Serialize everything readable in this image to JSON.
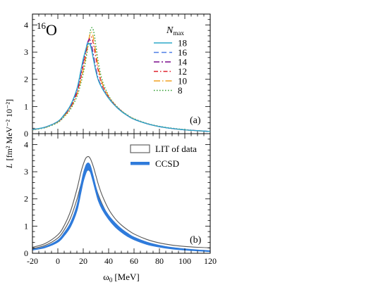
{
  "chart_data": [
    {
      "type": "line",
      "panel_label": "(a)",
      "nucleus": {
        "mass": "16",
        "element": "O"
      },
      "xlim": [
        -20,
        120
      ],
      "ylim": [
        0,
        4.4
      ],
      "yticks": [
        0,
        1,
        2,
        3,
        4
      ],
      "legend": {
        "title_main": "N",
        "title_sub": "max",
        "position": "top-right"
      },
      "series": [
        {
          "name": "18",
          "color": "#2ca9c9",
          "dash": "",
          "width": 1.3,
          "x": [
            -20,
            -10,
            0,
            5,
            10,
            15,
            18,
            20,
            22,
            23,
            24,
            25,
            26,
            27,
            28,
            30,
            32,
            35,
            40,
            45,
            50,
            55,
            60,
            70,
            80,
            90,
            100,
            110,
            120
          ],
          "y": [
            0.15,
            0.24,
            0.45,
            0.7,
            1.05,
            1.65,
            2.3,
            2.75,
            3.1,
            3.26,
            3.32,
            3.3,
            3.18,
            2.98,
            2.74,
            2.28,
            1.95,
            1.66,
            1.3,
            1.03,
            0.82,
            0.66,
            0.53,
            0.37,
            0.26,
            0.19,
            0.14,
            0.11,
            0.08
          ]
        },
        {
          "name": "16",
          "color": "#4f7fe6",
          "dash": "7,4",
          "width": 1.3,
          "x": [
            -20,
            -10,
            0,
            5,
            10,
            15,
            18,
            20,
            22,
            23,
            24,
            25,
            26,
            27,
            28,
            30,
            32,
            35,
            40,
            45,
            50,
            55,
            60,
            70,
            80,
            90,
            100,
            110,
            120
          ],
          "y": [
            0.15,
            0.24,
            0.45,
            0.7,
            1.04,
            1.63,
            2.28,
            2.73,
            3.1,
            3.3,
            3.38,
            3.36,
            3.22,
            3.01,
            2.77,
            2.3,
            1.96,
            1.66,
            1.3,
            1.03,
            0.82,
            0.66,
            0.53,
            0.37,
            0.26,
            0.19,
            0.14,
            0.11,
            0.08
          ]
        },
        {
          "name": "14",
          "color": "#7a0a8c",
          "dash": "8,3,2,3",
          "width": 1.3,
          "x": [
            -20,
            -10,
            0,
            5,
            10,
            15,
            18,
            20,
            22,
            23,
            24,
            25,
            26,
            27,
            28,
            30,
            32,
            35,
            40,
            45,
            50,
            55,
            60,
            70,
            80,
            90,
            100,
            110,
            120
          ],
          "y": [
            0.15,
            0.24,
            0.45,
            0.69,
            1.02,
            1.58,
            2.2,
            2.65,
            3.05,
            3.28,
            3.42,
            3.46,
            3.36,
            3.16,
            2.9,
            2.38,
            2.0,
            1.68,
            1.31,
            1.04,
            0.83,
            0.66,
            0.53,
            0.37,
            0.26,
            0.19,
            0.14,
            0.11,
            0.08
          ]
        },
        {
          "name": "12",
          "color": "#e0202a",
          "dash": "6,3,1.5,3",
          "width": 1.3,
          "x": [
            -20,
            -10,
            0,
            5,
            10,
            15,
            18,
            20,
            22,
            24,
            25,
            26,
            27,
            28,
            29,
            30,
            32,
            35,
            40,
            45,
            50,
            55,
            60,
            70,
            80,
            90,
            100,
            110,
            120
          ],
          "y": [
            0.15,
            0.24,
            0.44,
            0.67,
            0.98,
            1.5,
            2.05,
            2.5,
            2.95,
            3.38,
            3.52,
            3.57,
            3.5,
            3.3,
            3.05,
            2.78,
            2.28,
            1.78,
            1.34,
            1.05,
            0.83,
            0.66,
            0.53,
            0.37,
            0.26,
            0.19,
            0.14,
            0.11,
            0.08
          ]
        },
        {
          "name": "10",
          "color": "#f0a020",
          "dash": "9,3,1.5,3",
          "width": 1.3,
          "x": [
            -20,
            -10,
            0,
            5,
            10,
            15,
            18,
            20,
            22,
            24,
            25,
            26,
            27,
            28,
            29,
            30,
            32,
            35,
            40,
            45,
            50,
            55,
            60,
            70,
            80,
            90,
            100,
            110,
            120
          ],
          "y": [
            0.14,
            0.23,
            0.43,
            0.65,
            0.95,
            1.44,
            1.95,
            2.36,
            2.84,
            3.36,
            3.6,
            3.72,
            3.7,
            3.52,
            3.25,
            2.95,
            2.4,
            1.85,
            1.37,
            1.06,
            0.84,
            0.67,
            0.54,
            0.37,
            0.26,
            0.19,
            0.14,
            0.11,
            0.08
          ]
        },
        {
          "name": "8",
          "color": "#2e9e2e",
          "dash": "1.5,2.5",
          "width": 1.4,
          "x": [
            -20,
            -10,
            0,
            5,
            10,
            15,
            18,
            20,
            22,
            24,
            25,
            26,
            27,
            28,
            29,
            30,
            32,
            35,
            40,
            45,
            50,
            55,
            60,
            70,
            80,
            90,
            100,
            110,
            120
          ],
          "y": [
            0.14,
            0.22,
            0.41,
            0.62,
            0.9,
            1.36,
            1.84,
            2.22,
            2.7,
            3.3,
            3.62,
            3.85,
            3.9,
            3.8,
            3.55,
            3.22,
            2.6,
            1.95,
            1.4,
            1.08,
            0.85,
            0.68,
            0.55,
            0.38,
            0.27,
            0.2,
            0.15,
            0.11,
            0.08
          ]
        }
      ]
    },
    {
      "type": "line",
      "panel_label": "(b)",
      "xlim": [
        -20,
        120
      ],
      "ylim": [
        0,
        4.4
      ],
      "yticks": [
        0,
        1,
        2,
        3,
        4
      ],
      "xticks": [
        -20,
        0,
        20,
        40,
        60,
        80,
        100,
        120
      ],
      "xlabel": "[MeV]",
      "xlabel_symbol": "ω",
      "xlabel_subscript": "0",
      "ylabel": "L",
      "ylabel_units": "[fm² MeV⁻² 10⁻²]",
      "legend": {
        "position": "top-right"
      },
      "bands": [
        {
          "name": "LIT of data",
          "fill": "#ffffff",
          "stroke": "#555555",
          "x": [
            -20,
            -10,
            0,
            5,
            10,
            15,
            18,
            20,
            22,
            24,
            25,
            26,
            28,
            30,
            32,
            35,
            40,
            45,
            50,
            55,
            60,
            70,
            80,
            90,
            100,
            110,
            120
          ],
          "upper": [
            0.22,
            0.36,
            0.68,
            1.02,
            1.55,
            2.35,
            2.95,
            3.27,
            3.5,
            3.56,
            3.52,
            3.44,
            3.18,
            2.85,
            2.52,
            2.12,
            1.62,
            1.28,
            1.04,
            0.86,
            0.71,
            0.51,
            0.38,
            0.3,
            0.25,
            0.22,
            0.2
          ],
          "lower": [
            0.17,
            0.29,
            0.56,
            0.86,
            1.3,
            1.98,
            2.5,
            2.8,
            3.0,
            3.06,
            3.03,
            2.96,
            2.72,
            2.42,
            2.14,
            1.8,
            1.35,
            1.04,
            0.82,
            0.66,
            0.53,
            0.36,
            0.25,
            0.18,
            0.14,
            0.11,
            0.09
          ]
        },
        {
          "name": "CCSD",
          "fill": "#2f7bdb",
          "stroke": "#2f7bdb",
          "x": [
            -20,
            -10,
            0,
            5,
            10,
            15,
            18,
            20,
            22,
            23,
            24,
            25,
            26,
            28,
            30,
            32,
            35,
            40,
            45,
            50,
            55,
            60,
            70,
            80,
            90,
            100,
            110,
            120
          ],
          "upper": [
            0.14,
            0.25,
            0.48,
            0.75,
            1.12,
            1.76,
            2.46,
            2.92,
            3.22,
            3.3,
            3.32,
            3.28,
            3.16,
            2.8,
            2.42,
            2.08,
            1.76,
            1.39,
            1.12,
            0.9,
            0.73,
            0.59,
            0.41,
            0.29,
            0.21,
            0.16,
            0.12,
            0.09
          ],
          "lower": [
            0.12,
            0.21,
            0.41,
            0.65,
            0.98,
            1.56,
            2.2,
            2.64,
            2.94,
            3.04,
            3.07,
            3.05,
            2.94,
            2.6,
            2.24,
            1.92,
            1.61,
            1.25,
            0.98,
            0.78,
            0.62,
            0.5,
            0.33,
            0.23,
            0.16,
            0.12,
            0.09,
            0.06
          ]
        }
      ]
    }
  ]
}
